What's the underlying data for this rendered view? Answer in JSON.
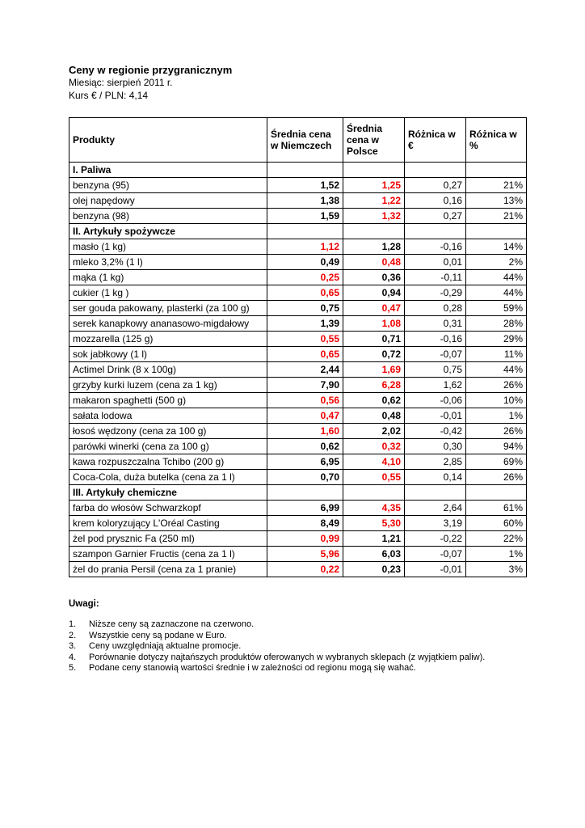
{
  "colors": {
    "lower_price_red": "#f00000",
    "border": "#000000",
    "background": "#ffffff"
  },
  "header": {
    "title": "Ceny w regionie przygranicznym",
    "month_line": "Miesiąc: sierpień 2011 r.",
    "rate_line": "Kurs € / PLN: 4,14"
  },
  "table": {
    "columns": [
      "Produkty",
      "Średnia cena w Niemczech",
      "Średnia cena w Polsce",
      "Różnica w €",
      "Różnica w %"
    ],
    "rows": [
      {
        "kind": "section",
        "label": "I. Paliwa"
      },
      {
        "kind": "item",
        "product": "benzyna (95)",
        "de": "1,52",
        "pl": "1,25",
        "diff": "0,27",
        "pct": "21%",
        "red": "pl"
      },
      {
        "kind": "item",
        "product": "olej napędowy",
        "de": "1,38",
        "pl": "1,22",
        "diff": "0,16",
        "pct": "13%",
        "red": "pl"
      },
      {
        "kind": "item",
        "product": "benzyna (98)",
        "de": "1,59",
        "pl": "1,32",
        "diff": "0,27",
        "pct": "21%",
        "red": "pl"
      },
      {
        "kind": "section",
        "label": "II. Artykuły spożywcze"
      },
      {
        "kind": "item",
        "product": "masło (1 kg)",
        "de": "1,12",
        "pl": "1,28",
        "diff": "-0,16",
        "pct": "14%",
        "red": "de"
      },
      {
        "kind": "item",
        "product": "mleko 3,2% (1 l)",
        "de": "0,49",
        "pl": "0,48",
        "diff": "0,01",
        "pct": "2%",
        "red": "pl"
      },
      {
        "kind": "item",
        "product": "mąka (1 kg)",
        "de": "0,25",
        "pl": "0,36",
        "diff": "-0,11",
        "pct": "44%",
        "red": "de"
      },
      {
        "kind": "item",
        "product": "cukier (1 kg )",
        "de": "0,65",
        "pl": "0,94",
        "diff": "-0,29",
        "pct": "44%",
        "red": "de"
      },
      {
        "kind": "item",
        "product": "ser gouda pakowany, plasterki (za 100 g)",
        "de": "0,75",
        "pl": "0,47",
        "diff": "0,28",
        "pct": "59%",
        "red": "pl"
      },
      {
        "kind": "item",
        "product": "serek kanapkowy ananasowo-migdałowy",
        "de": "1,39",
        "pl": "1,08",
        "diff": "0,31",
        "pct": "28%",
        "red": "pl"
      },
      {
        "kind": "item",
        "product": "mozzarella (125 g)",
        "de": "0,55",
        "pl": "0,71",
        "diff": "-0,16",
        "pct": "29%",
        "red": "de"
      },
      {
        "kind": "item",
        "product": "sok jabłkowy (1 l)",
        "de": "0,65",
        "pl": "0,72",
        "diff": "-0,07",
        "pct": "11%",
        "red": "de"
      },
      {
        "kind": "item",
        "product": "Actimel Drink (8 x 100g)",
        "de": "2,44",
        "pl": "1,69",
        "diff": "0,75",
        "pct": "44%",
        "red": "pl"
      },
      {
        "kind": "item",
        "product": "grzyby kurki luzem (cena za 1 kg)",
        "de": "7,90",
        "pl": "6,28",
        "diff": "1,62",
        "pct": "26%",
        "red": "pl"
      },
      {
        "kind": "item",
        "product": "makaron spaghetti (500 g)",
        "de": "0,56",
        "pl": "0,62",
        "diff": "-0,06",
        "pct": "10%",
        "red": "de"
      },
      {
        "kind": "item",
        "product": "sałata lodowa",
        "de": "0,47",
        "pl": "0,48",
        "diff": "-0,01",
        "pct": "1%",
        "red": "de"
      },
      {
        "kind": "item",
        "product": "łosoś wędzony (cena za 100 g)",
        "de": "1,60",
        "pl": "2,02",
        "diff": "-0,42",
        "pct": "26%",
        "red": "de"
      },
      {
        "kind": "item",
        "product": "parówki winerki (cena za 100 g)",
        "de": "0,62",
        "pl": "0,32",
        "diff": "0,30",
        "pct": "94%",
        "red": "pl"
      },
      {
        "kind": "item",
        "product": "kawa rozpuszczalna Tchibo (200 g)",
        "de": "6,95",
        "pl": "4,10",
        "diff": "2,85",
        "pct": "69%",
        "red": "pl"
      },
      {
        "kind": "item",
        "product": "Coca-Cola, duża butelka (cena za 1 l)",
        "de": "0,70",
        "pl": "0,55",
        "diff": "0,14",
        "pct": "26%",
        "red": "pl"
      },
      {
        "kind": "section",
        "label": "III. Artykuły chemiczne"
      },
      {
        "kind": "item",
        "product": "farba do włosów Schwarzkopf",
        "de": "6,99",
        "pl": "4,35",
        "diff": "2,64",
        "pct": "61%",
        "red": "pl"
      },
      {
        "kind": "item",
        "product": "krem koloryzujący L'Oréal Casting",
        "de": "8,49",
        "pl": "5,30",
        "diff": "3,19",
        "pct": "60%",
        "red": "pl"
      },
      {
        "kind": "item",
        "product": "żel pod prysznic Fa (250 ml)",
        "de": "0,99",
        "pl": "1,21",
        "diff": "-0,22",
        "pct": "22%",
        "red": "de"
      },
      {
        "kind": "item",
        "product": "szampon Garnier Fructis (cena za 1 l)",
        "de": "5,96",
        "pl": "6,03",
        "diff": "-0,07",
        "pct": "1%",
        "red": "de"
      },
      {
        "kind": "item",
        "product": "żel do prania Persil (cena za 1 pranie)",
        "de": "0,22",
        "pl": "0,23",
        "diff": "-0,01",
        "pct": "3%",
        "red": "de"
      }
    ]
  },
  "notes": {
    "title": "Uwagi:",
    "items": [
      "Niższe ceny są zaznaczone na czerwono.",
      "Wszystkie ceny są podane w Euro.",
      "Ceny uwzględniają aktualne promocje.",
      "Porównanie dotyczy najtańszych produktów oferowanych w wybranych sklepach (z wyjątkiem paliw).",
      "Podane ceny stanowią wartości średnie i w zależności od regionu mogą się wahać."
    ]
  }
}
